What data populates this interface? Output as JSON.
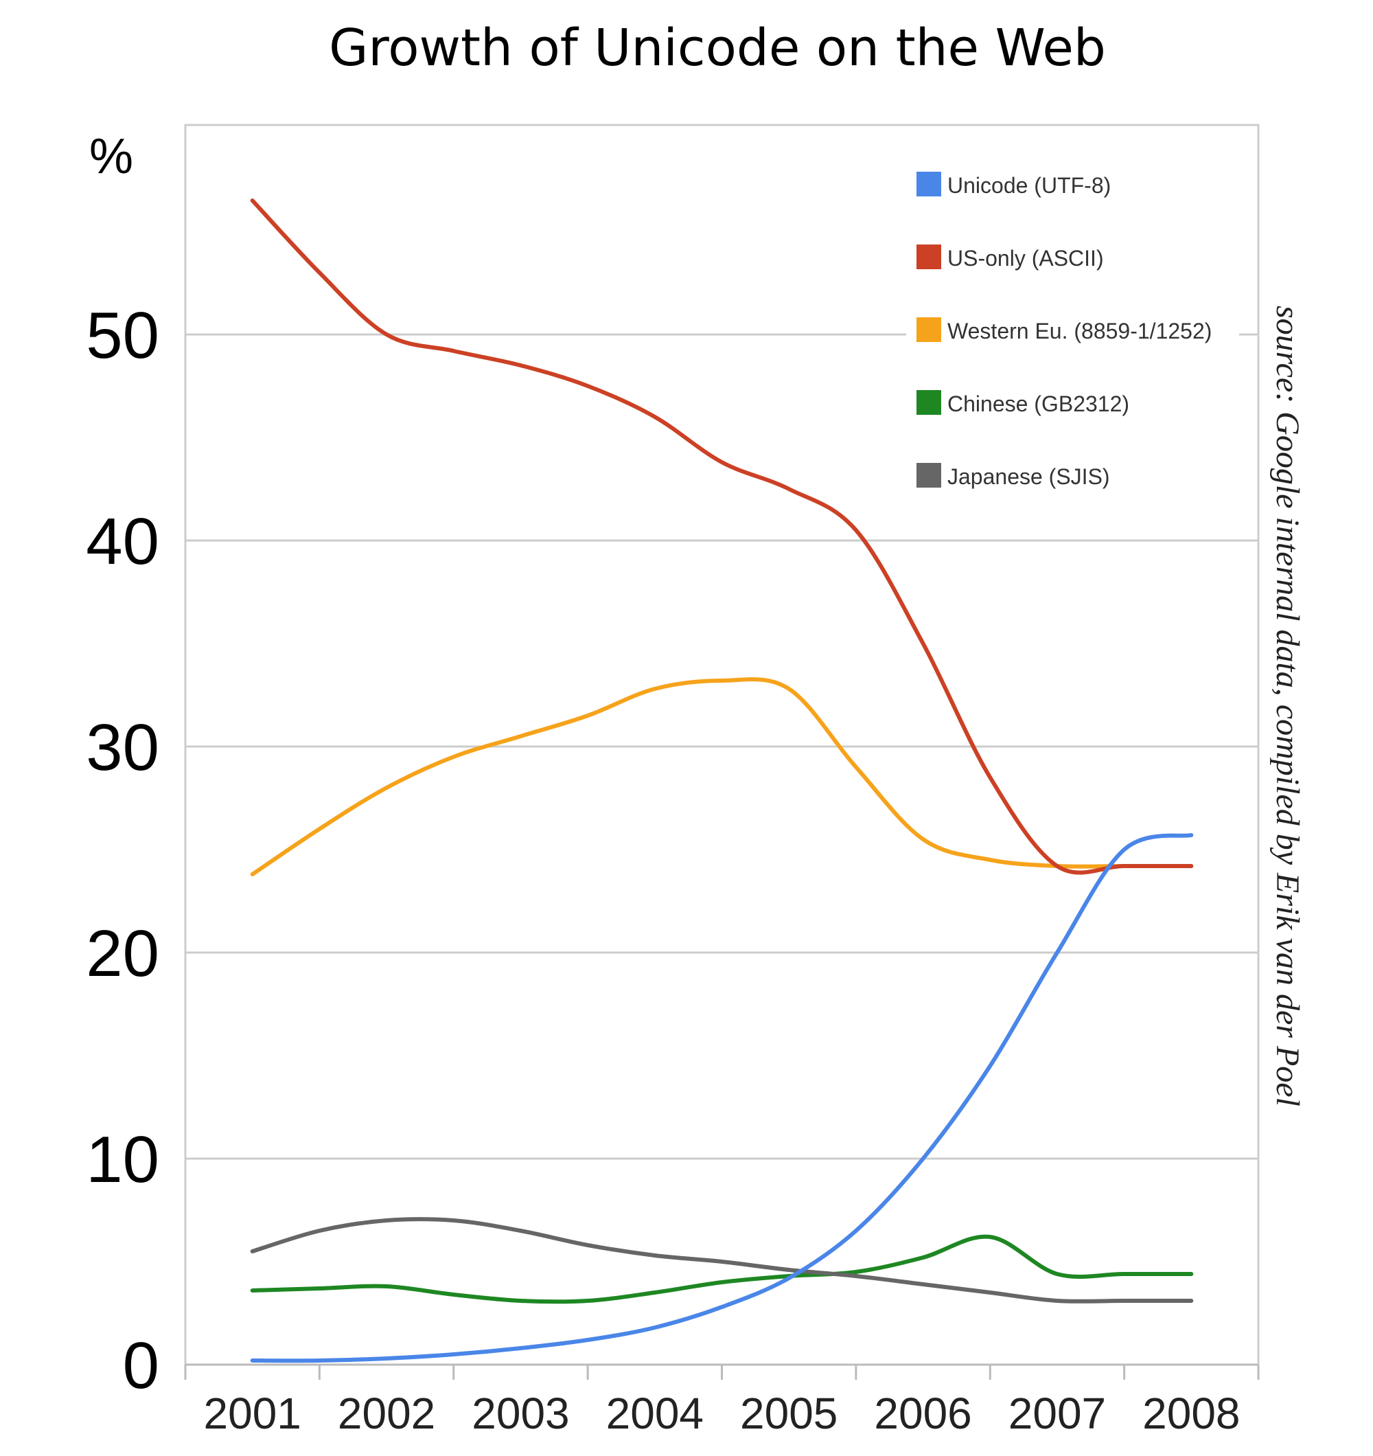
{
  "chart_data": {
    "type": "line",
    "title": "Growth of Unicode on the Web",
    "ylabel": "%",
    "xlabel": "",
    "categories": [
      "2001",
      "2002",
      "2003",
      "2004",
      "2005",
      "2006",
      "2007",
      "2008"
    ],
    "x": [
      2001.0,
      2001.5,
      2002.0,
      2002.5,
      2003.0,
      2003.5,
      2004.0,
      2004.5,
      2005.0,
      2005.5,
      2006.0,
      2006.5,
      2007.0,
      2007.5,
      2008.0
    ],
    "ylim": [
      0,
      60
    ],
    "yticks": [
      "0",
      "10",
      "20",
      "30",
      "40",
      "50"
    ],
    "ytick_values": [
      0,
      10,
      20,
      30,
      40,
      50
    ],
    "grid": true,
    "legend_position": "top-right",
    "series": [
      {
        "name": "Unicode (UTF-8)",
        "color": "#4a86e8",
        "values": [
          0.2,
          0.2,
          0.3,
          0.5,
          0.8,
          1.2,
          1.8,
          2.8,
          4.2,
          6.5,
          10.0,
          14.5,
          20.0,
          25.0,
          25.7
        ]
      },
      {
        "name": "US-only (ASCII)",
        "color": "#cc4125",
        "values": [
          56.5,
          53.0,
          50.0,
          49.2,
          48.5,
          47.5,
          46.0,
          43.8,
          42.5,
          40.5,
          35.0,
          28.5,
          24.2,
          24.2,
          24.2
        ]
      },
      {
        "name": "Western Eu. (8859-1/1252)",
        "color": "#f6a31b",
        "values": [
          23.8,
          26.0,
          28.0,
          29.5,
          30.5,
          31.5,
          32.8,
          33.2,
          32.8,
          29.0,
          25.5,
          24.5,
          24.2,
          24.2,
          24.2
        ]
      },
      {
        "name": "Chinese (GB2312)",
        "color": "#1e8722",
        "values": [
          3.6,
          3.7,
          3.8,
          3.4,
          3.1,
          3.1,
          3.5,
          4.0,
          4.3,
          4.5,
          5.2,
          6.2,
          4.4,
          4.4,
          4.4
        ]
      },
      {
        "name": "Japanese (SJIS)",
        "color": "#666666",
        "values": [
          5.5,
          6.5,
          7.0,
          7.0,
          6.5,
          5.8,
          5.3,
          5.0,
          4.6,
          4.3,
          3.9,
          3.5,
          3.1,
          3.1,
          3.1
        ]
      }
    ],
    "source_note": "source: Google internal data, compiled by Erik van der Poel"
  }
}
